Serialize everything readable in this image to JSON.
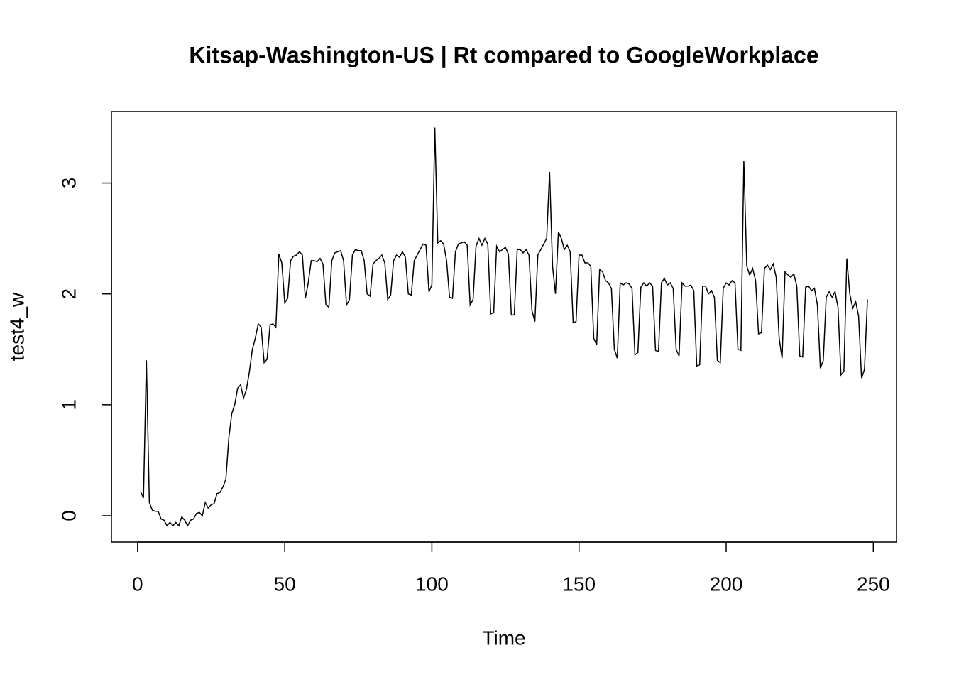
{
  "chart_data": {
    "type": "line",
    "title": "Kitsap-Washington-US | Rt compared to GoogleWorkplace",
    "xlabel": "Time",
    "ylabel": "test4_w",
    "xlim": [
      -8.88,
      257.88
    ],
    "ylim": [
      -0.237,
      3.644
    ],
    "xticks": [
      0,
      50,
      100,
      150,
      200,
      250
    ],
    "yticks": [
      0,
      1,
      2,
      3
    ],
    "color": "#000000",
    "x": [
      1,
      2,
      3,
      4,
      5,
      6,
      7,
      8,
      9,
      10,
      11,
      12,
      13,
      14,
      15,
      16,
      17,
      18,
      19,
      20,
      21,
      22,
      23,
      24,
      25,
      26,
      27,
      28,
      29,
      30,
      31,
      32,
      33,
      34,
      35,
      36,
      37,
      38,
      39,
      40,
      41,
      42,
      43,
      44,
      45,
      46,
      47,
      48,
      49,
      50,
      51,
      52,
      53,
      54,
      55,
      56,
      57,
      58,
      59,
      60,
      61,
      62,
      63,
      64,
      65,
      66,
      67,
      68,
      69,
      70,
      71,
      72,
      73,
      74,
      75,
      76,
      77,
      78,
      79,
      80,
      81,
      82,
      83,
      84,
      85,
      86,
      87,
      88,
      89,
      90,
      91,
      92,
      93,
      94,
      95,
      96,
      97,
      98,
      99,
      100,
      101,
      102,
      103,
      104,
      105,
      106,
      107,
      108,
      109,
      110,
      111,
      112,
      113,
      114,
      115,
      116,
      117,
      118,
      119,
      120,
      121,
      122,
      123,
      124,
      125,
      126,
      127,
      128,
      129,
      130,
      131,
      132,
      133,
      134,
      135,
      136,
      137,
      138,
      139,
      140,
      141,
      142,
      143,
      144,
      145,
      146,
      147,
      148,
      149,
      150,
      151,
      152,
      153,
      154,
      155,
      156,
      157,
      158,
      159,
      160,
      161,
      162,
      163,
      164,
      165,
      166,
      167,
      168,
      169,
      170,
      171,
      172,
      173,
      174,
      175,
      176,
      177,
      178,
      179,
      180,
      181,
      182,
      183,
      184,
      185,
      186,
      187,
      188,
      189,
      190,
      191,
      192,
      193,
      194,
      195,
      196,
      197,
      198,
      199,
      200,
      201,
      202,
      203,
      204,
      205,
      206,
      207,
      208,
      209,
      210,
      211,
      212,
      213,
      214,
      215,
      216,
      217,
      218,
      219,
      220,
      221,
      222,
      223,
      224,
      225,
      226,
      227,
      228,
      229,
      230,
      231,
      232,
      233,
      234,
      235,
      236,
      237,
      238,
      239,
      240,
      241,
      242,
      243,
      244,
      245,
      246,
      247,
      248
    ],
    "values": [
      0.22,
      0.16,
      1.4,
      0.12,
      0.05,
      0.04,
      0.04,
      -0.03,
      -0.04,
      -0.09,
      -0.06,
      -0.09,
      -0.06,
      -0.09,
      -0.01,
      -0.04,
      -0.09,
      -0.04,
      -0.03,
      0.02,
      0.03,
      0.0,
      0.12,
      0.07,
      0.1,
      0.11,
      0.2,
      0.21,
      0.26,
      0.33,
      0.7,
      0.92,
      1.0,
      1.15,
      1.18,
      1.06,
      1.14,
      1.3,
      1.5,
      1.6,
      1.73,
      1.7,
      1.38,
      1.41,
      1.72,
      1.73,
      1.7,
      2.36,
      2.28,
      1.92,
      1.96,
      2.3,
      2.34,
      2.35,
      2.38,
      2.35,
      1.96,
      2.1,
      2.3,
      2.3,
      2.29,
      2.32,
      2.27,
      1.9,
      1.88,
      2.3,
      2.37,
      2.38,
      2.39,
      2.3,
      1.9,
      1.95,
      2.35,
      2.4,
      2.39,
      2.39,
      2.3,
      2.0,
      1.98,
      2.27,
      2.3,
      2.32,
      2.35,
      2.28,
      1.95,
      1.99,
      2.3,
      2.35,
      2.33,
      2.38,
      2.33,
      2.0,
      1.99,
      2.3,
      2.35,
      2.4,
      2.45,
      2.44,
      2.02,
      2.08,
      3.5,
      2.46,
      2.48,
      2.45,
      2.3,
      1.97,
      1.96,
      2.38,
      2.45,
      2.46,
      2.47,
      2.44,
      1.9,
      1.95,
      2.43,
      2.5,
      2.44,
      2.5,
      2.45,
      1.82,
      1.83,
      2.43,
      2.38,
      2.4,
      2.42,
      2.36,
      1.81,
      1.81,
      2.4,
      2.4,
      2.37,
      2.4,
      2.35,
      1.85,
      1.75,
      2.35,
      2.4,
      2.45,
      2.5,
      3.1,
      2.25,
      2.0,
      2.56,
      2.5,
      2.4,
      2.44,
      2.38,
      1.74,
      1.75,
      2.35,
      2.35,
      2.28,
      2.28,
      2.25,
      1.6,
      1.54,
      2.22,
      2.2,
      2.12,
      2.1,
      2.05,
      1.5,
      1.42,
      2.1,
      2.08,
      2.1,
      2.09,
      2.05,
      1.45,
      1.47,
      2.06,
      2.1,
      2.07,
      2.1,
      2.07,
      1.49,
      1.48,
      2.1,
      2.14,
      2.08,
      2.1,
      2.05,
      1.5,
      1.44,
      2.1,
      2.07,
      2.07,
      2.08,
      2.03,
      1.35,
      1.36,
      2.07,
      2.07,
      2.0,
      2.03,
      1.97,
      1.4,
      1.38,
      2.05,
      2.1,
      2.08,
      2.12,
      2.1,
      1.5,
      1.49,
      3.2,
      2.25,
      2.17,
      2.23,
      2.12,
      1.64,
      1.65,
      2.23,
      2.26,
      2.22,
      2.27,
      2.15,
      1.6,
      1.42,
      2.2,
      2.17,
      2.15,
      2.18,
      2.07,
      1.44,
      1.43,
      2.06,
      2.07,
      2.03,
      2.05,
      1.9,
      1.33,
      1.4,
      1.97,
      2.02,
      1.97,
      2.02,
      1.88,
      1.27,
      1.3,
      2.32,
      2.0,
      1.87,
      1.93,
      1.8,
      1.24,
      1.32,
      1.95
    ]
  }
}
